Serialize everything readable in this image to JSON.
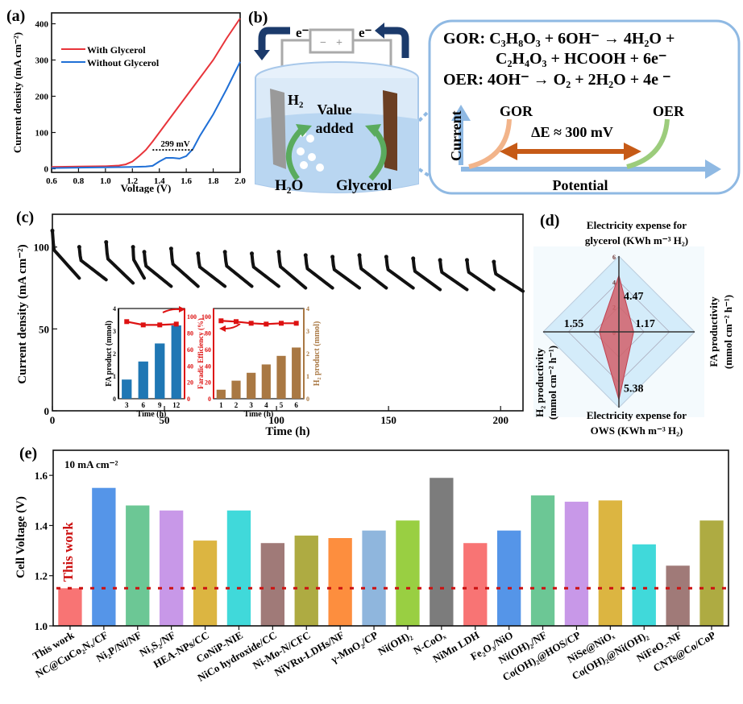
{
  "panel_labels": {
    "a": "(a)",
    "b": "(b)",
    "c": "(c)",
    "d": "(d)",
    "e": "(e)"
  },
  "chart_data": [
    {
      "id": "a",
      "type": "line",
      "xlabel": "Voltage (V)",
      "ylabel": "Current density (mA cm⁻²)",
      "xlim": [
        0.6,
        2.0
      ],
      "ylim": [
        -10,
        430
      ],
      "xticks": [
        "0.6",
        "0.8",
        "1.0",
        "1.2",
        "1.4",
        "1.6",
        "1.8",
        "2.0"
      ],
      "xtick_values": [
        0.6,
        0.8,
        1.0,
        1.2,
        1.4,
        1.6,
        1.8,
        2.0
      ],
      "yticks": [
        "0",
        "100",
        "200",
        "300",
        "400"
      ],
      "ytick_values": [
        0,
        100,
        200,
        300,
        400
      ],
      "series": [
        {
          "name": "With Glycerol",
          "color": "#e8343a",
          "x": [
            0.6,
            0.8,
            1.0,
            1.1,
            1.15,
            1.2,
            1.25,
            1.3,
            1.35,
            1.4,
            1.5,
            1.6,
            1.7,
            1.8,
            1.9,
            2.0
          ],
          "y": [
            5,
            6,
            7,
            9,
            12,
            20,
            35,
            52,
            75,
            100,
            150,
            200,
            250,
            300,
            360,
            415
          ]
        },
        {
          "name": "Without Glycerol",
          "color": "#1f6fd6",
          "x": [
            0.6,
            0.8,
            1.0,
            1.2,
            1.3,
            1.35,
            1.4,
            1.45,
            1.5,
            1.55,
            1.6,
            1.65,
            1.7,
            1.8,
            1.9,
            2.0
          ],
          "y": [
            2,
            3,
            4,
            5,
            6,
            8,
            20,
            30,
            30,
            28,
            35,
            55,
            90,
            150,
            220,
            295
          ]
        }
      ],
      "annotation": {
        "text": "299 mV",
        "x0": 1.35,
        "x1": 1.65,
        "y": 52
      },
      "legend_position": "top-left"
    },
    {
      "id": "c",
      "type": "scatter",
      "xlabel": "Time (h)",
      "ylabel": "Current density (mA cm⁻²)",
      "xlim": [
        0,
        210
      ],
      "ylim": [
        0,
        120
      ],
      "xticks": [
        "0",
        "50",
        "100",
        "150",
        "200"
      ],
      "xtick_values": [
        0,
        50,
        100,
        150,
        200
      ],
      "yticks": [
        "0",
        "50",
        "100"
      ],
      "ytick_values": [
        0,
        50,
        100
      ],
      "cycles": [
        {
          "start": 0,
          "end": 12,
          "peak": 110,
          "low": 81
        },
        {
          "start": 12,
          "end": 24,
          "peak": 100,
          "low": 80
        },
        {
          "start": 24,
          "end": 36,
          "peak": 103,
          "low": 78
        },
        {
          "start": 36,
          "end": 41,
          "peak": 100,
          "low": 81
        },
        {
          "start": 41,
          "end": 53,
          "peak": 97,
          "low": 76
        },
        {
          "start": 53,
          "end": 65,
          "peak": 99,
          "low": 76
        },
        {
          "start": 65,
          "end": 77,
          "peak": 96,
          "low": 76
        },
        {
          "start": 77,
          "end": 89,
          "peak": 97,
          "low": 76
        },
        {
          "start": 89,
          "end": 101,
          "peak": 96,
          "low": 76
        },
        {
          "start": 101,
          "end": 113,
          "peak": 97,
          "low": 75
        },
        {
          "start": 113,
          "end": 125,
          "peak": 95,
          "low": 75
        },
        {
          "start": 125,
          "end": 137,
          "peak": 94,
          "low": 75
        },
        {
          "start": 137,
          "end": 149,
          "peak": 95,
          "low": 75
        },
        {
          "start": 149,
          "end": 161,
          "peak": 94,
          "low": 75
        },
        {
          "start": 161,
          "end": 173,
          "peak": 93,
          "low": 74
        },
        {
          "start": 173,
          "end": 185,
          "peak": 92,
          "low": 74
        },
        {
          "start": 185,
          "end": 197,
          "peak": 92,
          "low": 74
        },
        {
          "start": 197,
          "end": 210,
          "peak": 91,
          "low": 73
        }
      ],
      "insets": [
        {
          "id": "c-inset-fa",
          "type": "bar",
          "xlabel": "Time (h)",
          "ylabel_left": "FA product (mmol)",
          "ylabel_right": "Faradic Efficiency (%)",
          "categories": [
            "3",
            "6",
            "9",
            "12"
          ],
          "bar_values": [
            0.85,
            1.65,
            2.45,
            3.25
          ],
          "bar_color": "#1f77b4",
          "line_values": [
            94,
            90,
            90,
            91
          ],
          "line_color": "#dd1111",
          "ylim_left": [
            0,
            4
          ],
          "yticks_left": [
            "0",
            "1",
            "2",
            "3",
            "4"
          ],
          "ylim_right": [
            0,
            110
          ],
          "yticks_right": [
            "0",
            "20",
            "40",
            "60",
            "80",
            "100"
          ]
        },
        {
          "id": "c-inset-h2",
          "type": "bar",
          "xlabel": "Time (h)",
          "ylabel_left": "",
          "ylabel_right": "H₂ product (mmol)",
          "categories": [
            "1",
            "2",
            "3",
            "4",
            "5",
            "6"
          ],
          "bar_values": [
            0.4,
            0.8,
            1.15,
            1.52,
            1.9,
            2.27
          ],
          "bar_color": "#a97843",
          "line_values": [
            95,
            94,
            92,
            91,
            92,
            92
          ],
          "line_color": "#dd1111",
          "ylim_left": [
            0,
            110
          ],
          "yticks_left": [
            "0",
            "20",
            "40",
            "60",
            "80",
            "100"
          ],
          "ylim_right": [
            0,
            4
          ],
          "yticks_right": [
            "0",
            "1",
            "2",
            "3",
            "4"
          ]
        }
      ]
    },
    {
      "id": "d",
      "type": "radar",
      "axes": [
        {
          "label_line1": "Electricity expense for",
          "label_line2": "glycerol (KWh m⁻³ H₂)",
          "value": 4.47,
          "value_label": "4.47"
        },
        {
          "label_line1": "FA productivity",
          "label_line2": "(mmol cm⁻² h⁻¹)",
          "value": 1.17,
          "value_label": "1.17"
        },
        {
          "label_line1": "Electricity expense for",
          "label_line2": "OWS (KWh m⁻³ H₂)",
          "value": 5.38,
          "value_label": "5.38"
        },
        {
          "label_line1": "H₂ productivity",
          "label_line2": "(mmol cm⁻² h⁻¹)",
          "value": 1.55,
          "value_label": "1.55"
        }
      ],
      "rlim": [
        0,
        6
      ],
      "rticks": [
        "0",
        "2",
        "4",
        "6"
      ],
      "rtick_values": [
        0,
        2,
        4,
        6
      ],
      "fill_color": "#d1606a",
      "background_color": "#d4ecfa"
    },
    {
      "id": "e",
      "type": "bar",
      "xlabel": "",
      "ylabel": "Cell Voltage (V)",
      "annotation": "10 mA cm⁻²",
      "ylim": [
        1.0,
        1.7
      ],
      "yticks": [
        "1.0",
        "1.2",
        "1.4",
        "1.6"
      ],
      "ytick_values": [
        1.0,
        1.2,
        1.4,
        1.6
      ],
      "reference_line": {
        "value": 1.15,
        "label": "This work",
        "color": "#cc1111"
      },
      "categories": [
        "This work",
        "NC@CuCo₂Nₓ/CF",
        "Ni₂P/Ni/NF",
        "Ni₃S₂/NF",
        "HEA-NPs/CC",
        "CoNiP-NIE",
        "NiCo hydroxide/CC",
        "Ni-Mo-N/CFC",
        "NiVRu-LDHs/NF",
        "γ-MnO₂/CP",
        "Ni(OH)₂",
        "N-CoOₓ",
        "NiMn LDH",
        "Fe₂O₃/NiO",
        "Ni(OH)₂/NF",
        "Co(OH)₂@HOS/CP",
        "NiSe@NiOₓ",
        "Co(OH)₂@Ni(OH)₂",
        "NiFeOₓ-NF",
        "CNTs@Co/CoP"
      ],
      "values": [
        1.15,
        1.55,
        1.48,
        1.46,
        1.34,
        1.46,
        1.33,
        1.36,
        1.35,
        1.38,
        1.42,
        1.59,
        1.33,
        1.38,
        1.52,
        1.495,
        1.5,
        1.325,
        1.24,
        1.42
      ],
      "colors": [
        "#f87474",
        "#5595e8",
        "#6cc795",
        "#c898e8",
        "#dcb541",
        "#40d9da",
        "#a07a78",
        "#aeab42",
        "#fd8e3e",
        "#8fb6dd",
        "#99cf42",
        "#7c7c7c",
        "#f87474",
        "#5595e8",
        "#6cc795",
        "#c898e8",
        "#dcb541",
        "#40d9da",
        "#a07a78",
        "#aeab42"
      ]
    }
  ],
  "diagram_b": {
    "electron_left": "e⁻",
    "electron_right": "e⁻",
    "battery_minus": "−",
    "battery_plus": "+",
    "h2_label": "H₂",
    "h2o_label": "H₂O",
    "value_line1": "Value",
    "value_line2": "added",
    "glycerol_label": "Glycerol"
  },
  "reaction_box": {
    "gor_line1": "GOR: C₃H₈O₃ + 6OH⁻ → 4H₂O +",
    "gor_line2": "C₂H₄O₃ + HCOOH +  6e⁻",
    "oer_line": "OER: 4OH⁻ → O₂ + 2H₂O + 4e ⁻",
    "gor_curve_label": "GOR",
    "oer_curve_label": "OER",
    "delta_e": "ΔE ≈ 300 mV",
    "y_axis": "Current",
    "x_axis": "Potential"
  }
}
